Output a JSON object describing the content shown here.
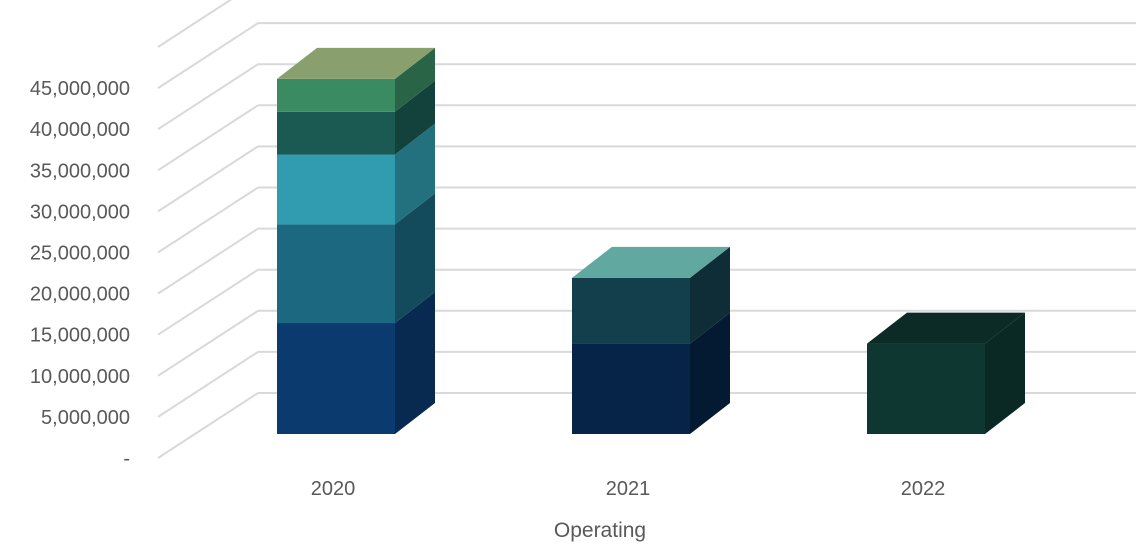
{
  "chart_data": {
    "type": "bar",
    "stacked": true,
    "three_d": true,
    "categories": [
      "2020",
      "2021",
      "2022"
    ],
    "xlabel": "Operating",
    "ylabel": "",
    "title": "",
    "ylim": [
      0,
      50000000
    ],
    "y_ticks": [
      {
        "value": 0,
        "label": "-"
      },
      {
        "value": 5000000,
        "label": "5,000,000"
      },
      {
        "value": 10000000,
        "label": "10,000,000"
      },
      {
        "value": 15000000,
        "label": "15,000,000"
      },
      {
        "value": 20000000,
        "label": "20,000,000"
      },
      {
        "value": 25000000,
        "label": "25,000,000"
      },
      {
        "value": 30000000,
        "label": "30,000,000"
      },
      {
        "value": 35000000,
        "label": "35,000,000"
      },
      {
        "value": 40000000,
        "label": "40,000,000"
      },
      {
        "value": 45000000,
        "label": "45,000,000"
      }
    ],
    "grid": true,
    "legend": "none",
    "series": [
      {
        "values": [
          13500000,
          11000000,
          11000000
        ],
        "colors": [
          "#0B3A6F",
          "#062447",
          "#0E3732"
        ]
      },
      {
        "values": [
          12000000,
          8000000,
          0
        ],
        "colors": [
          "#1B6880",
          "#133E4C",
          "#0E3732"
        ]
      },
      {
        "values": [
          8500000,
          0,
          0
        ],
        "colors": [
          "#319BB0",
          "#319BB0",
          "#319BB0"
        ]
      },
      {
        "values": [
          5200000,
          0,
          0
        ],
        "colors": [
          "#1A5A52",
          "#1A5A52",
          "#1A5A52"
        ]
      },
      {
        "values": [
          4000000,
          0,
          0
        ],
        "colors": [
          "#3B8B62",
          "#3B8B62",
          "#3B8B62"
        ]
      }
    ],
    "top_colors": [
      "#8A9F6E",
      "#60A8A0",
      "#0D2B26"
    ]
  }
}
